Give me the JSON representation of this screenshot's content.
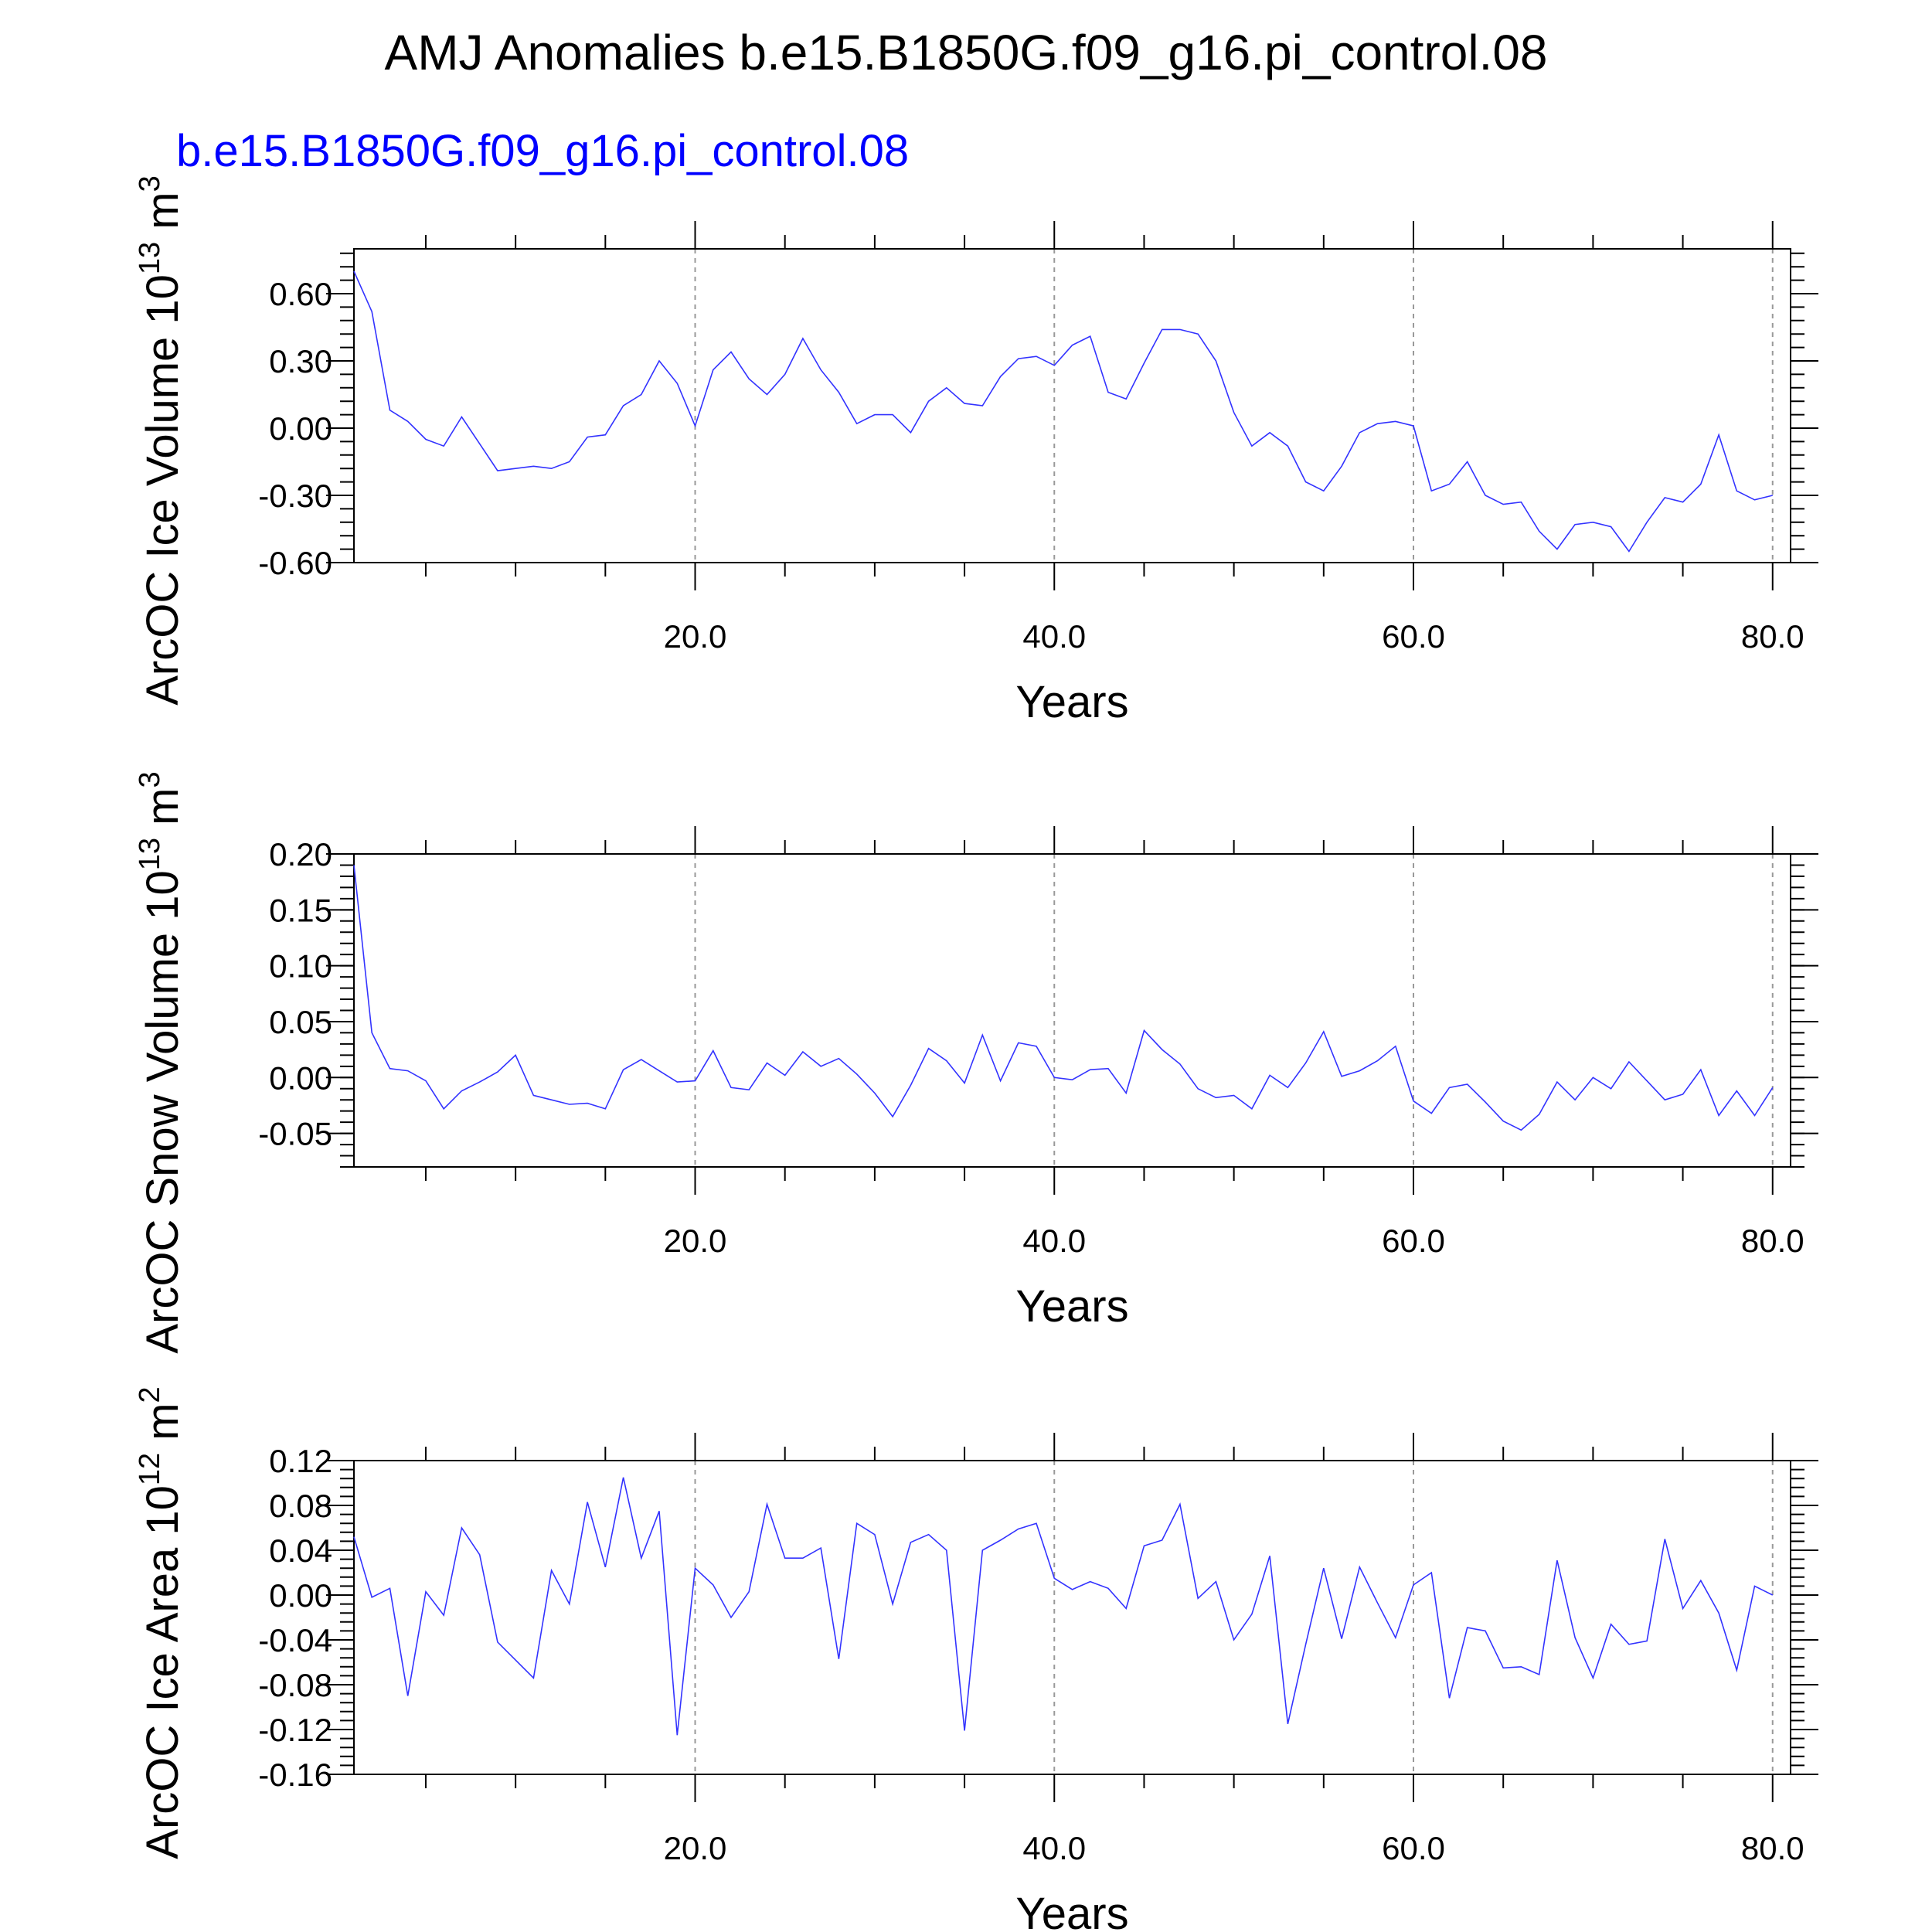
{
  "figure": {
    "title": "AMJ Anomalies b.e15.B1850G.f09_g16.pi_control.08",
    "subtitle": "b.e15.B1850G.f09_g16.pi_control.08",
    "line_color": "#3333ff",
    "subtitle_color": "#0000ff"
  },
  "chart_data": [
    {
      "type": "line",
      "ylabel": "ArcOC Ice Volume 10",
      "ylabel_exp": "13",
      "ylabel_unit": "m",
      "ylabel_unit_exp": "3",
      "xlabel": "Years",
      "xlim": [
        1,
        81
      ],
      "ylim": [
        -0.6,
        0.8
      ],
      "xticks": [
        20,
        40,
        60,
        80
      ],
      "xtick_labels": [
        "20.0",
        "40.0",
        "60.0",
        "80.0"
      ],
      "yticks": [
        -0.6,
        -0.3,
        0.0,
        0.3,
        0.6
      ],
      "ytick_labels": [
        "-0.60",
        "-0.30",
        "0.00",
        "0.30",
        "0.60"
      ],
      "grid": "vertical dashed at major x ticks",
      "series": [
        {
          "x_start": 1,
          "values": [
            0.7,
            0.52,
            0.08,
            0.03,
            -0.05,
            -0.08,
            0.05,
            -0.07,
            -0.19,
            -0.18,
            -0.17,
            -0.18,
            -0.15,
            -0.04,
            -0.03,
            0.1,
            0.15,
            0.3,
            0.2,
            0.01,
            0.26,
            0.34,
            0.22,
            0.15,
            0.24,
            0.4,
            0.26,
            0.16,
            0.02,
            0.06,
            0.06,
            -0.02,
            0.12,
            0.18,
            0.11,
            0.1,
            0.23,
            0.31,
            0.32,
            0.28,
            0.37,
            0.41,
            0.16,
            0.13,
            0.29,
            0.44,
            0.44,
            0.42,
            0.3,
            0.07,
            -0.08,
            -0.02,
            -0.08,
            -0.24,
            -0.28,
            -0.17,
            -0.02,
            0.02,
            0.03,
            0.01,
            -0.28,
            -0.25,
            -0.15,
            -0.3,
            -0.34,
            -0.33,
            -0.46,
            -0.54,
            -0.43,
            -0.42,
            -0.44,
            -0.55,
            -0.42,
            -0.31,
            -0.33,
            -0.25,
            -0.03,
            -0.28,
            -0.32,
            -0.3
          ]
        }
      ]
    },
    {
      "type": "line",
      "ylabel": "ArcOC Snow Volume 10",
      "ylabel_exp": "13",
      "ylabel_unit": "m",
      "ylabel_unit_exp": "3",
      "xlabel": "Years",
      "xlim": [
        1,
        81
      ],
      "ylim": [
        -0.08,
        0.2
      ],
      "xticks": [
        20,
        40,
        60,
        80
      ],
      "xtick_labels": [
        "20.0",
        "40.0",
        "60.0",
        "80.0"
      ],
      "yticks": [
        -0.05,
        0.0,
        0.05,
        0.1,
        0.15,
        0.2
      ],
      "ytick_labels": [
        "-0.05",
        "0.00",
        "0.05",
        "0.10",
        "0.15",
        "0.20"
      ],
      "grid": "vertical dashed at major x ticks",
      "series": [
        {
          "x_start": 1,
          "values": [
            0.19,
            0.04,
            0.008,
            0.006,
            -0.003,
            -0.028,
            -0.012,
            -0.004,
            0.005,
            0.02,
            -0.016,
            -0.02,
            -0.024,
            -0.023,
            -0.028,
            0.007,
            0.016,
            0.006,
            -0.004,
            -0.003,
            0.024,
            -0.009,
            -0.011,
            0.013,
            0.002,
            0.023,
            0.01,
            0.017,
            0.003,
            -0.014,
            -0.035,
            -0.007,
            0.026,
            0.015,
            -0.005,
            0.038,
            -0.003,
            0.031,
            0.028,
            0.0,
            -0.002,
            0.007,
            0.008,
            -0.014,
            0.042,
            0.025,
            0.012,
            -0.01,
            -0.018,
            -0.016,
            -0.028,
            0.002,
            -0.009,
            0.013,
            0.041,
            0.001,
            0.006,
            0.015,
            0.028,
            -0.021,
            -0.032,
            -0.009,
            -0.006,
            -0.022,
            -0.039,
            -0.047,
            -0.033,
            -0.004,
            -0.02,
            -0.0,
            -0.01,
            0.014,
            -0.003,
            -0.02,
            -0.015,
            0.007,
            -0.034,
            -0.012,
            -0.034,
            -0.009
          ]
        }
      ]
    },
    {
      "type": "line",
      "ylabel": "ArcOC Ice Area 10",
      "ylabel_exp": "12",
      "ylabel_unit": "m",
      "ylabel_unit_exp": "2",
      "xlabel": "Years",
      "xlim": [
        1,
        81
      ],
      "ylim": [
        -0.16,
        0.12
      ],
      "xticks": [
        20,
        40,
        60,
        80
      ],
      "xtick_labels": [
        "20.0",
        "40.0",
        "60.0",
        "80.0"
      ],
      "yticks": [
        -0.16,
        -0.12,
        -0.08,
        -0.04,
        0.0,
        0.04,
        0.08,
        0.12
      ],
      "ytick_labels": [
        "-0.16",
        "-0.12",
        "-0.08",
        "-0.04",
        "0.00",
        "0.04",
        "0.08",
        "0.12"
      ],
      "grid": "vertical dashed at major x ticks",
      "series": [
        {
          "x_start": 1,
          "values": [
            0.052,
            -0.002,
            0.006,
            -0.09,
            0.003,
            -0.018,
            0.06,
            0.036,
            -0.042,
            -0.058,
            -0.074,
            0.022,
            -0.008,
            0.083,
            0.025,
            0.105,
            0.033,
            0.075,
            -0.125,
            0.024,
            0.009,
            -0.02,
            0.003,
            0.081,
            0.033,
            0.033,
            0.042,
            -0.057,
            0.064,
            0.054,
            -0.008,
            0.047,
            0.054,
            0.04,
            -0.121,
            0.04,
            0.049,
            0.059,
            0.064,
            0.015,
            0.005,
            0.012,
            0.006,
            -0.012,
            0.044,
            0.049,
            0.081,
            -0.003,
            0.012,
            -0.04,
            -0.017,
            0.035,
            -0.115,
            -0.044,
            0.024,
            -0.039,
            0.025,
            -0.007,
            -0.038,
            0.009,
            0.02,
            -0.092,
            -0.029,
            -0.032,
            -0.065,
            -0.064,
            -0.071,
            0.031,
            -0.038,
            -0.074,
            -0.026,
            -0.044,
            -0.041,
            0.05,
            -0.012,
            0.013,
            -0.016,
            -0.067,
            0.008,
            0.0
          ]
        }
      ]
    }
  ]
}
